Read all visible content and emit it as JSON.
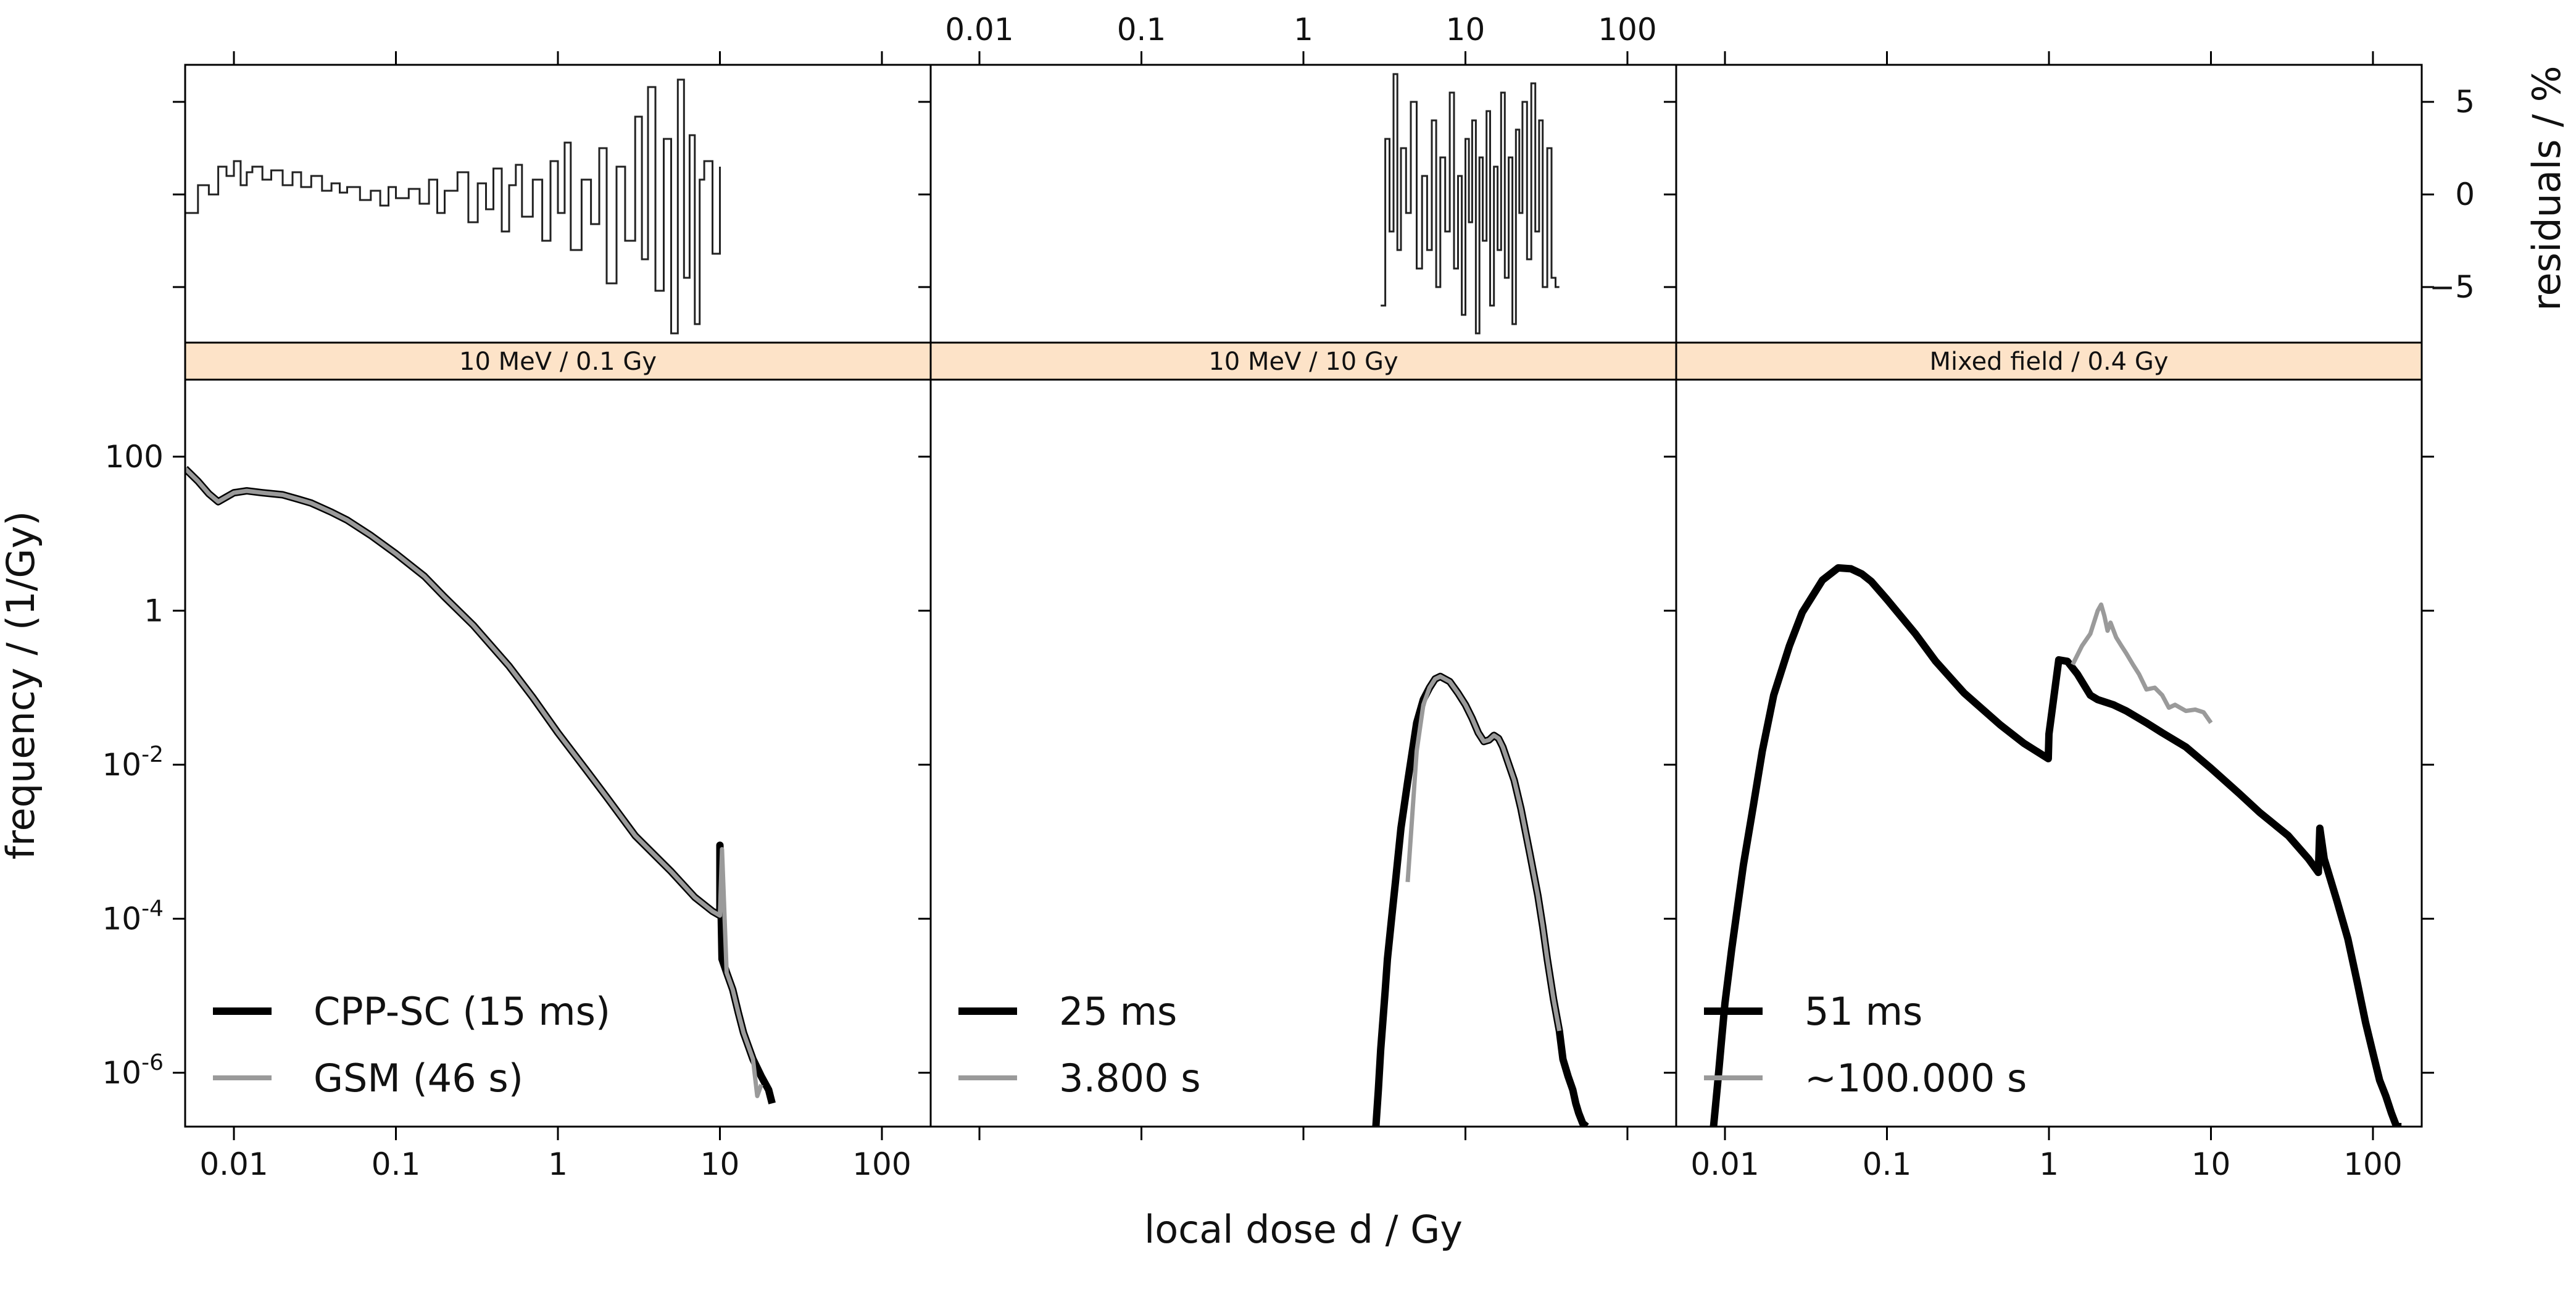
{
  "chart_data": {
    "type": "line",
    "title": "",
    "xlabel": "local dose d / Gy",
    "ylabel": "frequency / (1/Gy)",
    "residual_ylabel": "residuals / %",
    "xscale": "log",
    "yscale": "log",
    "xlim": [
      0.005,
      200
    ],
    "ylim": [
      2e-07,
      1000
    ],
    "residual_ylim": [
      -8,
      7
    ],
    "x_tick_labels": [
      "0.01",
      "0.1",
      "1",
      "10",
      "100"
    ],
    "x_tick_values": [
      0.01,
      0.1,
      1,
      10,
      100
    ],
    "y_tick_labels": [
      {
        "base": "100",
        "exp": ""
      },
      {
        "base": "1",
        "exp": ""
      },
      {
        "base": "10",
        "exp": "-2"
      },
      {
        "base": "10",
        "exp": "-4"
      },
      {
        "base": "10",
        "exp": "-6"
      }
    ],
    "y_tick_values": [
      100,
      1,
      0.01,
      0.0001,
      1e-06
    ],
    "residual_tick_labels": [
      "5",
      "0",
      "−5"
    ],
    "residual_tick_values": [
      5,
      0,
      -5
    ],
    "strip_color": "#fde3c8",
    "series_colors": {
      "cpp": "#000000",
      "gsm": "#9a9a9a"
    },
    "panels": [
      {
        "strip_label": "10 MeV / 0.1 Gy",
        "legend": [
          "CPP-SC (15 ms)",
          "GSM (46 s)"
        ],
        "cpp": {
          "x": [
            0.005,
            0.006,
            0.007,
            0.008,
            0.009,
            0.01,
            0.012,
            0.015,
            0.02,
            0.025,
            0.03,
            0.04,
            0.05,
            0.07,
            0.1,
            0.15,
            0.2,
            0.3,
            0.5,
            0.7,
            1,
            1.5,
            2,
            3,
            5,
            7,
            9,
            10,
            10,
            10.3,
            11,
            12,
            13,
            14,
            15,
            16,
            18,
            20,
            21
          ],
          "y": [
            70,
            48,
            33,
            26,
            30,
            34,
            36,
            34,
            32,
            28,
            25,
            19,
            15,
            9.5,
            5.5,
            2.8,
            1.5,
            0.65,
            0.19,
            0.075,
            0.026,
            0.0085,
            0.0038,
            0.0012,
            0.00041,
            0.00019,
            0.000125,
            0.00011,
            0.0009,
            3e-05,
            2e-05,
            1.2e-05,
            6e-06,
            3.3e-06,
            2.2e-06,
            1.5e-06,
            9e-07,
            6e-07,
            4e-07
          ]
        },
        "gsm": {
          "x": [
            0.005,
            0.006,
            0.007,
            0.008,
            0.009,
            0.01,
            0.012,
            0.015,
            0.02,
            0.025,
            0.03,
            0.04,
            0.05,
            0.07,
            0.1,
            0.15,
            0.2,
            0.3,
            0.5,
            0.7,
            1,
            1.5,
            2,
            3,
            5,
            7,
            9,
            10,
            10.3,
            11,
            12,
            13,
            14,
            15,
            16,
            17,
            18
          ],
          "y": [
            70,
            48,
            33,
            26,
            30,
            34,
            36,
            34,
            32,
            28,
            25,
            19,
            15,
            9.5,
            5.5,
            2.8,
            1.5,
            0.65,
            0.19,
            0.075,
            0.026,
            0.0085,
            0.0038,
            0.0012,
            0.00041,
            0.00019,
            0.000125,
            0.00011,
            0.0008,
            2e-05,
            1.2e-05,
            6e-06,
            3.3e-06,
            2.2e-06,
            1.5e-06,
            5e-07,
            7e-07
          ]
        },
        "residuals": {
          "x": [
            0.005,
            0.006,
            0.007,
            0.008,
            0.009,
            0.01,
            0.011,
            0.012,
            0.013,
            0.015,
            0.017,
            0.02,
            0.023,
            0.026,
            0.03,
            0.035,
            0.04,
            0.045,
            0.05,
            0.06,
            0.07,
            0.08,
            0.09,
            0.1,
            0.12,
            0.14,
            0.16,
            0.18,
            0.2,
            0.24,
            0.28,
            0.32,
            0.36,
            0.4,
            0.45,
            0.5,
            0.55,
            0.6,
            0.7,
            0.8,
            0.9,
            1.0,
            1.1,
            1.2,
            1.4,
            1.6,
            1.8,
            2.0,
            2.3,
            2.6,
            3.0,
            3.3,
            3.6,
            4.0,
            4.5,
            5.0,
            5.5,
            6.0,
            6.5,
            7.0,
            7.5,
            8.0,
            9.0,
            10.0
          ],
          "y": [
            -1,
            0.5,
            0,
            1.5,
            1,
            1.8,
            0.5,
            1.2,
            1.5,
            0.8,
            1.3,
            0.5,
            1.2,
            0.4,
            1.0,
            0.2,
            0.6,
            0.1,
            0.4,
            -0.3,
            0.2,
            -0.6,
            0.4,
            -0.2,
            0.3,
            -0.5,
            0.8,
            -1.0,
            0.2,
            1.2,
            -1.5,
            0.6,
            -0.8,
            1.4,
            -2.0,
            0.5,
            1.6,
            -1.2,
            0.8,
            -2.5,
            1.8,
            -1.0,
            2.8,
            -3.0,
            0.8,
            -1.6,
            2.5,
            -4.8,
            1.5,
            -2.5,
            4.2,
            -3.5,
            5.8,
            -5.2,
            3.0,
            -7.5,
            6.2,
            -4.5,
            3.2,
            -7.0,
            0.8,
            1.8,
            -3.2,
            1.5
          ]
        }
      },
      {
        "strip_label": "10 MeV / 10 Gy",
        "legend": [
          "25 ms",
          "3.800 s"
        ],
        "cpp": {
          "x": [
            2.8,
            2.9,
            3.0,
            3.1,
            3.2,
            3.3,
            3.5,
            3.7,
            4.0,
            4.4,
            5.0,
            5.5,
            6.0,
            6.5,
            7.0,
            8.0,
            9.0,
            10.0,
            11.0,
            12.0,
            13.0,
            14.0,
            15.0,
            16.0,
            17.0,
            18.0,
            20.0,
            22.0,
            25.0,
            28.0,
            30.0,
            32.0,
            35.0,
            38.0,
            40.0,
            43.0,
            46.0,
            48.0,
            50.0,
            53.0,
            56.0
          ],
          "y": [
            2e-07,
            6e-07,
            2e-06,
            5e-06,
            1.2e-05,
            3e-05,
            0.0001,
            0.0003,
            0.0015,
            0.006,
            0.035,
            0.07,
            0.1,
            0.13,
            0.14,
            0.12,
            0.085,
            0.06,
            0.04,
            0.026,
            0.02,
            0.021,
            0.024,
            0.022,
            0.017,
            0.012,
            0.0063,
            0.0027,
            0.0007,
            0.0002,
            8e-05,
            3e-05,
            9e-06,
            3.5e-06,
            1.5e-06,
            9e-07,
            6e-07,
            4e-07,
            3e-07,
            2.2e-07,
            2e-07
          ]
        },
        "gsm": {
          "x": [
            4.4,
            5.0,
            5.5,
            6.0,
            6.5,
            7.0,
            8.0,
            9.0,
            10.0,
            11.0,
            12.0,
            13.0,
            14.0,
            15.0,
            16.0,
            17.0,
            18.0,
            20.0,
            22.0,
            25.0,
            28.0,
            30.0,
            32.0,
            35.0,
            38.0
          ],
          "y": [
            0.0003,
            0.015,
            0.06,
            0.1,
            0.13,
            0.14,
            0.12,
            0.085,
            0.06,
            0.04,
            0.026,
            0.02,
            0.021,
            0.024,
            0.022,
            0.017,
            0.012,
            0.0063,
            0.0027,
            0.0007,
            0.0002,
            8e-05,
            3e-05,
            9e-06,
            3.5e-06
          ]
        },
        "residuals": {
          "x": [
            3.0,
            3.2,
            3.4,
            3.6,
            3.8,
            4.0,
            4.3,
            4.6,
            5.0,
            5.4,
            5.8,
            6.2,
            6.6,
            7.0,
            7.5,
            8.0,
            8.5,
            9.0,
            9.5,
            10.0,
            10.5,
            11.0,
            11.6,
            12.2,
            12.8,
            13.5,
            14.2,
            15.0,
            15.8,
            16.6,
            17.5,
            18.5,
            19.5,
            20.5,
            21.5,
            22.5,
            24.0,
            25.5,
            27.0,
            28.5,
            30.0,
            32.0,
            34.0,
            36.0,
            38.0
          ],
          "y": [
            -6,
            3,
            -2,
            6.5,
            -3,
            2.5,
            -1,
            5,
            -4,
            1,
            -3,
            4,
            -5,
            2,
            -2,
            5.5,
            -4,
            1,
            -6.5,
            3,
            -1.5,
            4,
            -7.5,
            2,
            -2.5,
            4.5,
            -6,
            1.5,
            -3,
            5.5,
            -4.5,
            2,
            -7,
            3.5,
            -1,
            5,
            -3.5,
            6,
            -2,
            4,
            -5,
            2.5,
            -4.5,
            -5,
            -5
          ]
        }
      },
      {
        "strip_label": "Mixed field / 0.4 Gy",
        "legend": [
          "51 ms",
          "~100.000 s"
        ],
        "cpp": {
          "x": [
            0.0085,
            0.009,
            0.0095,
            0.01,
            0.011,
            0.012,
            0.013,
            0.015,
            0.017,
            0.02,
            0.025,
            0.03,
            0.04,
            0.05,
            0.06,
            0.07,
            0.08,
            0.1,
            0.15,
            0.2,
            0.3,
            0.5,
            0.7,
            0.99,
            1.0,
            1.15,
            1.3,
            1.5,
            1.8,
            2.0,
            2.5,
            3.0,
            4.0,
            5.0,
            7.0,
            10.0,
            15.0,
            20.0,
            30.0,
            40.0,
            46.0,
            47.0,
            50.0,
            60.0,
            70.0,
            80.0,
            90.0,
            100.0,
            110.0,
            120.0,
            130.0,
            140.0,
            150.0
          ],
          "y": [
            2e-07,
            7e-07,
            2.5e-06,
            8e-06,
            4e-05,
            0.00015,
            0.0005,
            0.003,
            0.015,
            0.08,
            0.35,
            0.95,
            2.5,
            3.6,
            3.5,
            3.0,
            2.4,
            1.4,
            0.5,
            0.22,
            0.085,
            0.033,
            0.019,
            0.012,
            0.025,
            0.23,
            0.22,
            0.15,
            0.08,
            0.07,
            0.06,
            0.05,
            0.035,
            0.026,
            0.017,
            0.009,
            0.0042,
            0.0024,
            0.0012,
            0.0006,
            0.0004,
            0.0015,
            0.0006,
            0.00017,
            5.5e-05,
            1.5e-05,
            4.5e-06,
            1.8e-06,
            8e-07,
            5e-07,
            3e-07,
            2e-07,
            2e-07
          ]
        },
        "gsm": {
          "x": [
            1.4,
            1.6,
            1.8,
            2.0,
            2.1,
            2.2,
            2.3,
            2.4,
            2.6,
            2.8,
            3.0,
            3.3,
            3.6,
            4.0,
            4.5,
            5.0,
            5.5,
            6.0,
            7.0,
            8.0,
            9.0,
            10.0
          ],
          "y": [
            0.2,
            0.35,
            0.5,
            1.0,
            1.2,
            0.85,
            0.55,
            0.7,
            0.45,
            0.35,
            0.28,
            0.2,
            0.15,
            0.095,
            0.1,
            0.08,
            0.055,
            0.06,
            0.05,
            0.052,
            0.048,
            0.035
          ]
        },
        "residuals": {
          "x": [],
          "y": []
        }
      }
    ]
  }
}
